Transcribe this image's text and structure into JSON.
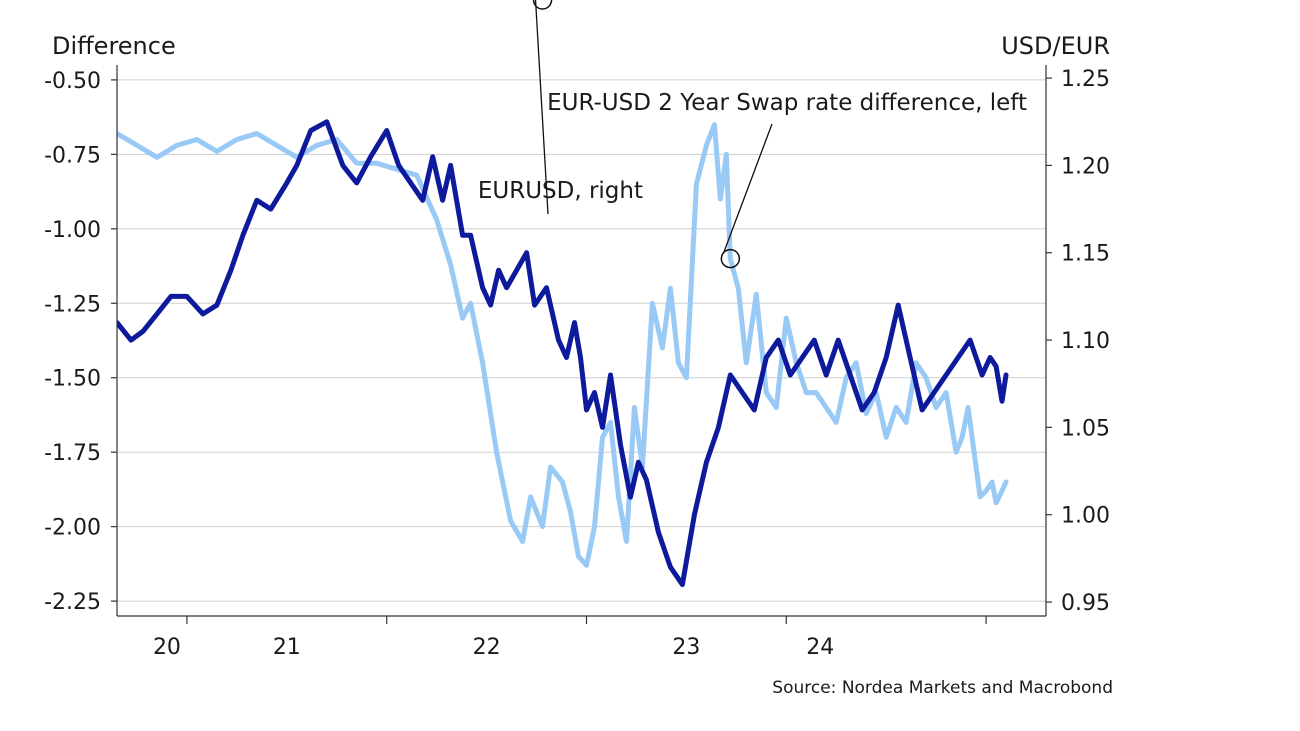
{
  "chart_data": {
    "type": "line",
    "left_axis": {
      "label": "Difference",
      "ylim": [
        -2.3,
        -0.45
      ],
      "ticks": [
        -0.5,
        -0.75,
        -1.0,
        -1.25,
        -1.5,
        -1.75,
        -2.0,
        -2.25
      ],
      "tick_labels": [
        "-0.50",
        "-0.75",
        "-1.00",
        "-1.25",
        "-1.50",
        "-1.75",
        "-2.00",
        "-2.25"
      ]
    },
    "right_axis": {
      "label": "USD/EUR",
      "ylim": [
        0.942,
        1.2575
      ],
      "ticks": [
        1.25,
        1.2,
        1.15,
        1.1,
        1.05,
        1.0,
        0.95
      ],
      "tick_labels": [
        "1.25",
        "1.20",
        "1.15",
        "1.10",
        "1.05",
        "1.00",
        "0.95"
      ]
    },
    "x_axis": {
      "xlim": [
        2019.65,
        2024.3
      ],
      "tick_positions": [
        2020,
        2021,
        2022,
        2023,
        2024
      ],
      "labels": [
        {
          "label": "20",
          "at": 2019.9
        },
        {
          "label": "21",
          "at": 2020.5
        },
        {
          "label": "22",
          "at": 2021.5
        },
        {
          "label": "23",
          "at": 2022.5
        },
        {
          "label": "24",
          "at": 2023.17
        }
      ]
    },
    "grid": true,
    "series": [
      {
        "name": "EUR-USD 2 Year Swap rate difference, left",
        "axis": "left",
        "color": "#99c9f5",
        "x": [
          2019.65,
          2019.75,
          2019.85,
          2019.95,
          2020.05,
          2020.15,
          2020.25,
          2020.35,
          2020.45,
          2020.55,
          2020.65,
          2020.75,
          2020.85,
          2020.95,
          2021.05,
          2021.15,
          2021.25,
          2021.32,
          2021.38,
          2021.42,
          2021.48,
          2021.55,
          2021.62,
          2021.68,
          2021.72,
          2021.78,
          2021.82,
          2021.88,
          2021.92,
          2021.96,
          2022.0,
          2022.04,
          2022.08,
          2022.12,
          2022.16,
          2022.2,
          2022.24,
          2022.28,
          2022.33,
          2022.38,
          2022.42,
          2022.46,
          2022.5,
          2022.55,
          2022.6,
          2022.64,
          2022.67,
          2022.7,
          2022.72,
          2022.76,
          2022.8,
          2022.85,
          2022.9,
          2022.95,
          2023.0,
          2023.05,
          2023.1,
          2023.15,
          2023.2,
          2023.25,
          2023.3,
          2023.35,
          2023.4,
          2023.45,
          2023.5,
          2023.55,
          2023.6,
          2023.65,
          2023.7,
          2023.75,
          2023.8,
          2023.85,
          2023.88,
          2023.91,
          2023.94,
          2023.97,
          2024.0,
          2024.03,
          2024.05,
          2024.08,
          2024.1
        ],
        "values": [
          -0.68,
          -0.72,
          -0.76,
          -0.72,
          -0.7,
          -0.74,
          -0.7,
          -0.68,
          -0.72,
          -0.76,
          -0.72,
          -0.7,
          -0.78,
          -0.78,
          -0.8,
          -0.82,
          -0.97,
          -1.12,
          -1.3,
          -1.25,
          -1.45,
          -1.75,
          -1.98,
          -2.05,
          -1.9,
          -2.0,
          -1.8,
          -1.85,
          -1.95,
          -2.1,
          -2.13,
          -2.0,
          -1.7,
          -1.65,
          -1.9,
          -2.05,
          -1.6,
          -1.8,
          -1.25,
          -1.4,
          -1.2,
          -1.45,
          -1.5,
          -0.85,
          -0.72,
          -0.65,
          -0.9,
          -0.75,
          -1.1,
          -1.2,
          -1.45,
          -1.22,
          -1.55,
          -1.6,
          -1.3,
          -1.45,
          -1.55,
          -1.55,
          -1.6,
          -1.65,
          -1.5,
          -1.45,
          -1.62,
          -1.55,
          -1.7,
          -1.6,
          -1.65,
          -1.45,
          -1.5,
          -1.6,
          -1.55,
          -1.75,
          -1.7,
          -1.6,
          -1.75,
          -1.9,
          -1.88,
          -1.85,
          -1.92,
          -1.88,
          -1.85
        ]
      },
      {
        "name": "EURUSD, right",
        "axis": "right",
        "color": "#0e1a9c",
        "x": [
          2019.65,
          2019.72,
          2019.78,
          2019.85,
          2019.92,
          2020.0,
          2020.08,
          2020.15,
          2020.22,
          2020.28,
          2020.35,
          2020.42,
          2020.5,
          2020.55,
          2020.62,
          2020.7,
          2020.78,
          2020.85,
          2020.92,
          2021.0,
          2021.06,
          2021.12,
          2021.18,
          2021.23,
          2021.28,
          2021.32,
          2021.38,
          2021.42,
          2021.48,
          2021.52,
          2021.56,
          2021.6,
          2021.65,
          2021.7,
          2021.74,
          2021.8,
          2021.86,
          2021.9,
          2021.94,
          2021.97,
          2022.0,
          2022.04,
          2022.08,
          2022.12,
          2022.17,
          2022.22,
          2022.26,
          2022.3,
          2022.36,
          2022.42,
          2022.48,
          2022.54,
          2022.6,
          2022.66,
          2022.72,
          2022.78,
          2022.84,
          2022.9,
          2022.96,
          2023.02,
          2023.08,
          2023.14,
          2023.2,
          2023.26,
          2023.32,
          2023.38,
          2023.44,
          2023.5,
          2023.56,
          2023.62,
          2023.68,
          2023.74,
          2023.8,
          2023.86,
          2023.92,
          2023.98,
          2024.02,
          2024.05,
          2024.08,
          2024.1
        ],
        "values": [
          1.11,
          1.1,
          1.105,
          1.115,
          1.125,
          1.125,
          1.115,
          1.12,
          1.14,
          1.16,
          1.18,
          1.175,
          1.19,
          1.2,
          1.22,
          1.225,
          1.2,
          1.19,
          1.205,
          1.22,
          1.2,
          1.19,
          1.18,
          1.205,
          1.18,
          1.2,
          1.16,
          1.16,
          1.13,
          1.12,
          1.14,
          1.13,
          1.14,
          1.15,
          1.12,
          1.13,
          1.1,
          1.09,
          1.11,
          1.09,
          1.06,
          1.07,
          1.05,
          1.08,
          1.04,
          1.01,
          1.03,
          1.02,
          0.99,
          0.97,
          0.96,
          1.0,
          1.03,
          1.05,
          1.08,
          1.07,
          1.06,
          1.09,
          1.1,
          1.08,
          1.09,
          1.1,
          1.08,
          1.1,
          1.08,
          1.06,
          1.07,
          1.09,
          1.12,
          1.09,
          1.06,
          1.07,
          1.08,
          1.09,
          1.1,
          1.08,
          1.09,
          1.085,
          1.065,
          1.08
        ]
      }
    ],
    "annotations": [
      {
        "text": "EUR-USD 2 Year Swap rate difference, left",
        "series": 0,
        "at_x": 2022.72
      },
      {
        "text": "EURUSD, right",
        "series": 1,
        "at_x": 2021.78
      }
    ],
    "source": "Source: Nordea Markets and Macrobond"
  },
  "colors": {
    "series_light": "#99c9f5",
    "series_dark": "#0e1a9c",
    "grid": "#cfcfcf",
    "axis": "#333333",
    "text": "#1a1a1a"
  }
}
